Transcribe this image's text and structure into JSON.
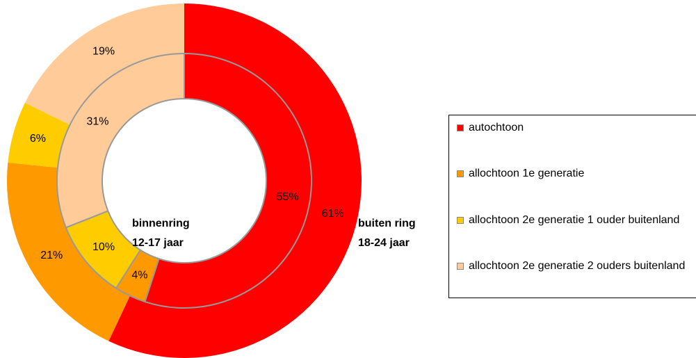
{
  "chart_data": {
    "type": "donut",
    "categories": [
      "autochtoon",
      "allochtoon 1e generatie",
      "allochtoon 2e generatie 1 ouder buitenland",
      "allochtoon 2e generatie 2 ouders buitenland"
    ],
    "colors": [
      "#ff0000",
      "#ff9900",
      "#ffcc00",
      "#ffcc99"
    ],
    "series": [
      {
        "name": "buiten ring",
        "subtitle": "18-24 jaar",
        "values": [
          61,
          21,
          6,
          19
        ],
        "value_labels": [
          "61%",
          "21%",
          "6%",
          "19%"
        ]
      },
      {
        "name": "binnenring",
        "subtitle": "12-17 jaar",
        "values": [
          55,
          4,
          10,
          31
        ],
        "value_labels": [
          "55%",
          "4%",
          "10%",
          "31%"
        ]
      }
    ]
  }
}
